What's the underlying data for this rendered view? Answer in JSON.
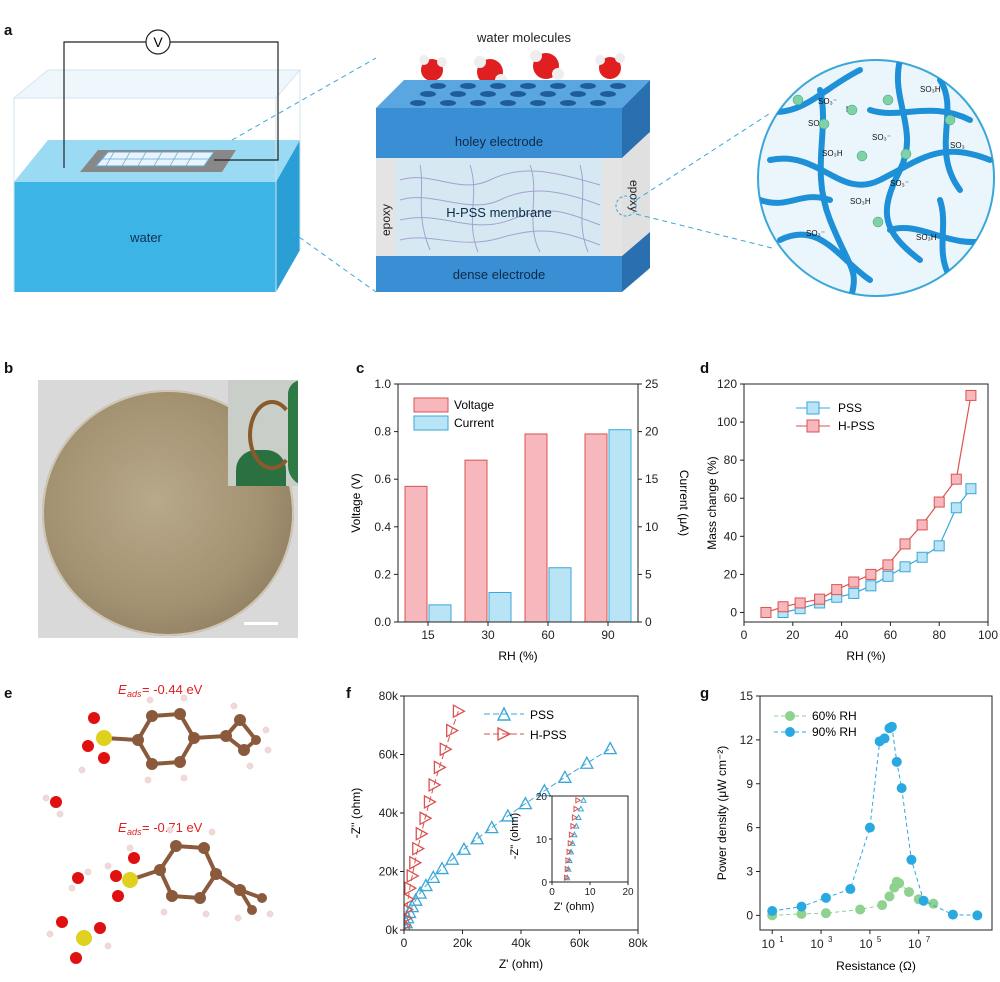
{
  "panels": {
    "a": "a",
    "b": "b",
    "c": "c",
    "d": "d",
    "e": "e",
    "f": "f",
    "g": "g"
  },
  "panel_a": {
    "voltmeter": "V",
    "water": "water",
    "water_molecules": "water molecules",
    "holey_electrode": "holey electrode",
    "membrane": "H-PSS membrane",
    "dense_electrode": "dense electrode",
    "epoxy_left": "epoxy",
    "epoxy_right": "epoxy",
    "zoom_labels": [
      "SO₃H",
      "SO₃⁻",
      "H⁺",
      "SO₃⁻",
      "SO₃H",
      "SO₃⁻",
      "SO₃",
      "SO₃⁻",
      "SO₃H",
      "SO₃⁻",
      "SO₃H"
    ],
    "colors": {
      "water": "#3cb4e6",
      "electrode": "#3a8fd4",
      "membrane": "#c9e3f0",
      "chain": "#1e90d8",
      "proton": "#7fd1a8"
    }
  },
  "panel_e": {
    "eads_label": "E",
    "eads_sub": "ads",
    "eads1": "= -0.44 eV",
    "eads2": "= -0.71 eV",
    "colors": {
      "carbon": "#8b5a3c",
      "oxygen": "#e01010",
      "sulfur": "#e0d020",
      "hydrogen": "#f0d8d8",
      "label": "#e02020"
    }
  },
  "chart_data": [
    {
      "id": "c",
      "type": "bar",
      "categories": [
        "15",
        "30",
        "60",
        "90"
      ],
      "xlabel": "RH (%)",
      "ylabel": "Voltage (V)",
      "ylabel_right": "Current (μA)",
      "ylim": [
        0,
        1.0
      ],
      "ylim_right": [
        0,
        25
      ],
      "yticks": [
        "0.0",
        "0.2",
        "0.4",
        "0.6",
        "0.8",
        "1.0"
      ],
      "yticks_right": [
        "0",
        "5",
        "10",
        "15",
        "20",
        "25"
      ],
      "series": [
        {
          "name": "Voltage",
          "values": [
            0.57,
            0.68,
            0.79,
            0.79
          ],
          "axis": "left",
          "color": "#f7b8bd",
          "stroke": "#d9534f"
        },
        {
          "name": "Current",
          "values": [
            1.8,
            3.1,
            5.7,
            20.2
          ],
          "axis": "right",
          "color": "#b9e4f5",
          "stroke": "#3aa7d8"
        }
      ],
      "legend": "top-left"
    },
    {
      "id": "d",
      "type": "line",
      "xlabel": "RH (%)",
      "ylabel": "Mass change (%)",
      "xlim": [
        0,
        100
      ],
      "ylim": [
        -5,
        120
      ],
      "xticks": [
        "0",
        "20",
        "40",
        "60",
        "80",
        "100"
      ],
      "yticks": [
        "0",
        "20",
        "40",
        "60",
        "80",
        "100",
        "120"
      ],
      "series": [
        {
          "name": "PSS",
          "x": [
            16,
            23,
            31,
            38,
            45,
            52,
            59,
            66,
            73,
            80,
            87,
            93
          ],
          "y": [
            0,
            2,
            5,
            8,
            10,
            14,
            19,
            24,
            29,
            35,
            55,
            65
          ],
          "color": "#3aa7d8"
        },
        {
          "name": "H-PSS",
          "x": [
            9,
            16,
            23,
            31,
            38,
            45,
            52,
            59,
            66,
            73,
            80,
            87,
            93
          ],
          "y": [
            0,
            3,
            5,
            7,
            12,
            16,
            20,
            25,
            36,
            46,
            58,
            70,
            114
          ],
          "color": "#d9534f"
        }
      ],
      "legend": "top-left"
    },
    {
      "id": "f",
      "type": "scatter",
      "xlabel": "Z' (ohm)",
      "ylabel": "-Z'' (ohm)",
      "xlim": [
        0,
        80000
      ],
      "ylim": [
        0,
        80000
      ],
      "xticks": [
        "0",
        "20k",
        "40k",
        "60k",
        "80k"
      ],
      "yticks": [
        "0k",
        "20k",
        "40k",
        "60k",
        "80k"
      ],
      "series": [
        {
          "name": "PSS",
          "x": [
            300,
            700,
            1200,
            1900,
            2800,
            4000,
            5500,
            7500,
            10000,
            13000,
            16500,
            20500,
            25000,
            30000,
            35500,
            41500,
            48000,
            55000,
            62500,
            70500
          ],
          "y": [
            1000,
            2500,
            4200,
            6000,
            8000,
            10200,
            12600,
            15200,
            18000,
            21000,
            24200,
            27600,
            31200,
            35000,
            39000,
            43200,
            47600,
            52200,
            57000,
            62000
          ],
          "color": "#3aa7d8"
        },
        {
          "name": "H-PSS",
          "x": [
            200,
            500,
            900,
            1400,
            2000,
            2800,
            3700,
            4700,
            5900,
            7200,
            8700,
            10300,
            12100,
            14100,
            16300,
            18600
          ],
          "y": [
            1500,
            4000,
            7000,
            10500,
            14300,
            18500,
            23000,
            27800,
            32900,
            38200,
            43800,
            49600,
            55600,
            61800,
            68200,
            74800
          ],
          "color": "#d9534f"
        }
      ],
      "inset": {
        "xlim": [
          0,
          20
        ],
        "ylim": [
          0,
          20
        ],
        "xticks": [
          "0",
          "10",
          "20"
        ],
        "yticks": [
          "0",
          "10",
          "20"
        ],
        "xlabel": "Z' (ohm)",
        "ylabel": "-Z'' (ohm)",
        "series": [
          {
            "name": "PSS",
            "x": [
              4.0,
              4.3,
              4.6,
              5.0,
              5.4,
              5.9,
              6.4,
              7.0,
              7.6,
              8.3
            ],
            "y": [
              1,
              3,
              5,
              7,
              9,
              11,
              13,
              15,
              17,
              19
            ]
          },
          {
            "name": "H-PSS",
            "x": [
              3.8,
              4.0,
              4.2,
              4.5,
              4.8,
              5.1,
              5.5,
              5.9,
              6.3,
              6.8
            ],
            "y": [
              1,
              3,
              5,
              7,
              9,
              11,
              13,
              15,
              17,
              19
            ]
          }
        ]
      },
      "legend": "top-left"
    },
    {
      "id": "g",
      "type": "scatter",
      "xlabel": "Resistance (Ω)",
      "ylabel": "Power density (μW cm⁻²)",
      "xscale": "log",
      "xlim": [
        0.25,
        5
      ],
      "ylim": [
        -1,
        15
      ],
      "xtick_base": "10",
      "xtick_exps": [
        "1",
        "3",
        "5",
        "7"
      ],
      "yticks": [
        "0",
        "3",
        "6",
        "9",
        "12",
        "15"
      ],
      "series": [
        {
          "name": "60% RH",
          "x": [
            0.5,
            1.1,
            1.6,
            2.3,
            2.75,
            2.9,
            3.0,
            3.05,
            3.1,
            3.3,
            3.5,
            3.8
          ],
          "y": [
            0,
            0.1,
            0.15,
            0.4,
            0.7,
            1.3,
            1.9,
            2.3,
            2.2,
            1.6,
            1.1,
            0.8
          ],
          "color": "#8fd18f"
        },
        {
          "name": "90% RH",
          "x": [
            0.5,
            1.1,
            1.6,
            2.1,
            2.5,
            2.7,
            2.8,
            2.9,
            2.95,
            3.05,
            3.15,
            3.35,
            3.6,
            4.2,
            4.7
          ],
          "y": [
            0.3,
            0.6,
            1.2,
            1.8,
            6.0,
            11.9,
            12.1,
            12.8,
            12.9,
            10.5,
            8.7,
            3.8,
            1.0,
            0.05,
            0
          ],
          "color": "#2aa9e0"
        }
      ],
      "legend": "top-left"
    }
  ]
}
